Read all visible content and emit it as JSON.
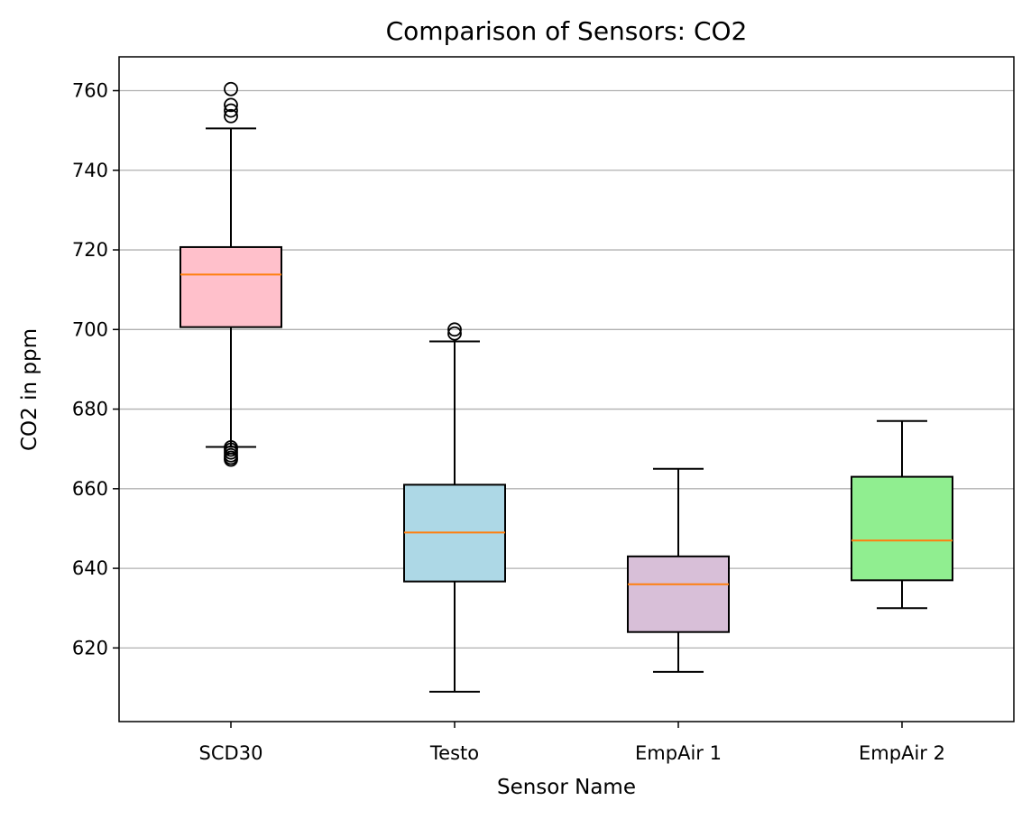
{
  "chart_data": {
    "type": "box",
    "title": "Comparison of Sensors: CO2",
    "xlabel": "Sensor Name",
    "ylabel": "CO2 in ppm",
    "ylim": [
      601.5,
      768.5
    ],
    "yticks": [
      620,
      640,
      660,
      680,
      700,
      720,
      740,
      760
    ],
    "grid": "y",
    "colors": {
      "median": "#ff7f0e",
      "edge": "#000000",
      "grid": "#b0b0b0"
    },
    "categories": [
      "SCD30",
      "Testo",
      "EmpAir 1",
      "EmpAir 2"
    ],
    "boxes": [
      {
        "label": "SCD30",
        "color": "#ffc0cb",
        "whisker_low": 670.5,
        "q1": 700.6,
        "median": 713.8,
        "q3": 720.7,
        "whisker_high": 750.5,
        "outliers": [
          753.6,
          755.0,
          756.4,
          760.4,
          667.3,
          667.8,
          668.4,
          669.1,
          669.8,
          670.4
        ]
      },
      {
        "label": "Testo",
        "color": "#add8e6",
        "whisker_low": 609,
        "q1": 636.7,
        "median": 649,
        "q3": 661,
        "whisker_high": 697,
        "outliers": [
          699.0,
          700.0
        ]
      },
      {
        "label": "EmpAir 1",
        "color": "#d8bfd8",
        "whisker_low": 614,
        "q1": 624,
        "median": 636,
        "q3": 643,
        "whisker_high": 665,
        "outliers": []
      },
      {
        "label": "EmpAir 2",
        "color": "#90ee90",
        "whisker_low": 630,
        "q1": 637,
        "median": 647,
        "q3": 663,
        "whisker_high": 677,
        "outliers": []
      }
    ]
  }
}
